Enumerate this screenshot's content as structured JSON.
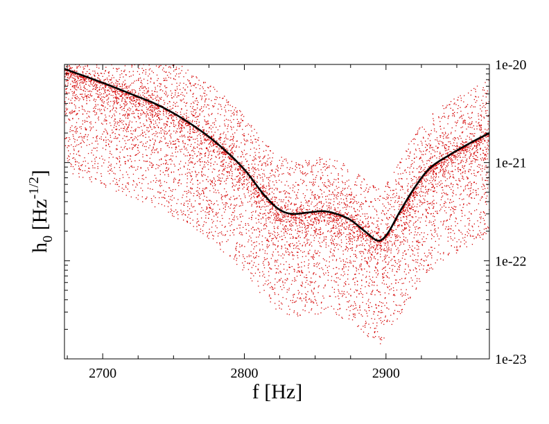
{
  "chart_data": {
    "type": "scatter",
    "xlabel": "f [Hz]",
    "ylabel": {
      "main": "h",
      "sub": "0",
      "bracket_open": " [Hz",
      "sup": "-1/2",
      "bracket_close": "]"
    },
    "xlim": [
      2673,
      2973
    ],
    "ylim": [
      1e-23,
      1e-20
    ],
    "yscale": "log",
    "x_ticks": [
      2700,
      2800,
      2900
    ],
    "x_tick_labels": [
      "2700",
      "2800",
      "2900"
    ],
    "y_ticks": [
      1e-23,
      1e-22,
      1e-21,
      1e-20
    ],
    "y_tick_labels": [
      "1e-23",
      "1e-22",
      "1e-21",
      "1e-20"
    ],
    "y_axis_side": "right",
    "grid": false,
    "colors": {
      "scatter": "#d40000",
      "curve": "#000000"
    },
    "series": [
      {
        "kind": "curve",
        "x": [
          2673,
          2700,
          2720,
          2740,
          2760,
          2780,
          2800,
          2815,
          2825,
          2835,
          2845,
          2855,
          2865,
          2875,
          2885,
          2895,
          2900,
          2910,
          2920,
          2930,
          2945,
          2960,
          2973
        ],
        "y": [
          9e-21,
          6.5e-21,
          5e-21,
          3.8e-21,
          2.6e-21,
          1.6e-21,
          8.5e-22,
          4.5e-22,
          3.3e-22,
          3e-22,
          3.1e-22,
          3.2e-22,
          3e-22,
          2.6e-22,
          2e-22,
          1.6e-22,
          1.8e-22,
          3.2e-22,
          5.5e-22,
          8.5e-22,
          1.2e-21,
          1.6e-21,
          2e-21
        ]
      },
      {
        "kind": "scatter-cloud",
        "point_count": 9000,
        "spread_dex_above": 0.55,
        "spread_dex_below": 1.05
      }
    ]
  }
}
